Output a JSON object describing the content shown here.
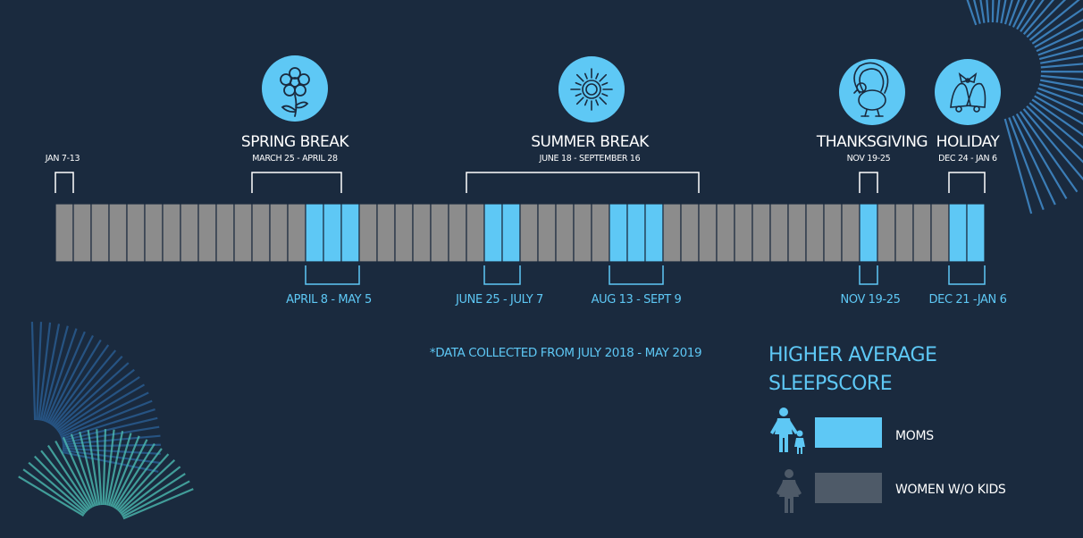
{
  "chart_data": {
    "type": "bar",
    "weeks": 52,
    "moms_higher_weeks": [
      14,
      15,
      16,
      24,
      25,
      31,
      32,
      33,
      45,
      50,
      51
    ],
    "periods": [
      {
        "id": "new-year",
        "title": "",
        "dates": "JAN 7-13",
        "start_week": 0,
        "end_week": 1
      },
      {
        "id": "spring-break",
        "title": "SPRING BREAK",
        "dates": "MARCH 25 - APRIL 28",
        "start_week": 11,
        "end_week": 16
      },
      {
        "id": "summer-break",
        "title": "SUMMER BREAK",
        "dates": "JUNE 18 - SEPTEMBER 16",
        "start_week": 23,
        "end_week": 36
      },
      {
        "id": "thanksgiving",
        "title": "THANKSGIVING",
        "dates": "NOV 19-25",
        "start_week": 45,
        "end_week": 46
      },
      {
        "id": "holiday",
        "title": "HOLIDAY",
        "dates": "DEC 24 - JAN 6",
        "start_week": 50,
        "end_week": 52
      }
    ],
    "moms_periods": [
      {
        "label": "APRIL 8 - MAY 5",
        "start_week": 14,
        "end_week": 17
      },
      {
        "label": "JUNE 25 - JULY 7",
        "start_week": 24,
        "end_week": 26
      },
      {
        "label": "AUG 13 - SEPT 9",
        "start_week": 31,
        "end_week": 34
      },
      {
        "label": "NOV 19-25",
        "start_week": 45,
        "end_week": 46
      },
      {
        "label": "DEC 21 -JAN 6",
        "start_week": 50,
        "end_week": 52
      }
    ],
    "note": "*DATA COLLECTED FROM JULY 2018 - MAY 2019",
    "legend": {
      "title_line1": "HIGHER AVERAGE",
      "title_line2": "SLEEPSCORE",
      "items": [
        {
          "label": "MOMS",
          "color": "#5ec8f5",
          "icon": "mother-child-icon"
        },
        {
          "label": "WOMEN W/O KIDS",
          "color": "#4e5a68",
          "icon": "woman-icon"
        }
      ]
    },
    "colors": {
      "background": "#1a2a3e",
      "moms": "#5ec8f5",
      "women_bar": "#8c8c8c",
      "women_legend": "#4e5a68",
      "bracket": "#ffffff",
      "icon_circle": "#5ec8f5"
    },
    "icons": [
      "flower-icon",
      "sun-icon",
      "turkey-icon",
      "bells-icon"
    ]
  }
}
